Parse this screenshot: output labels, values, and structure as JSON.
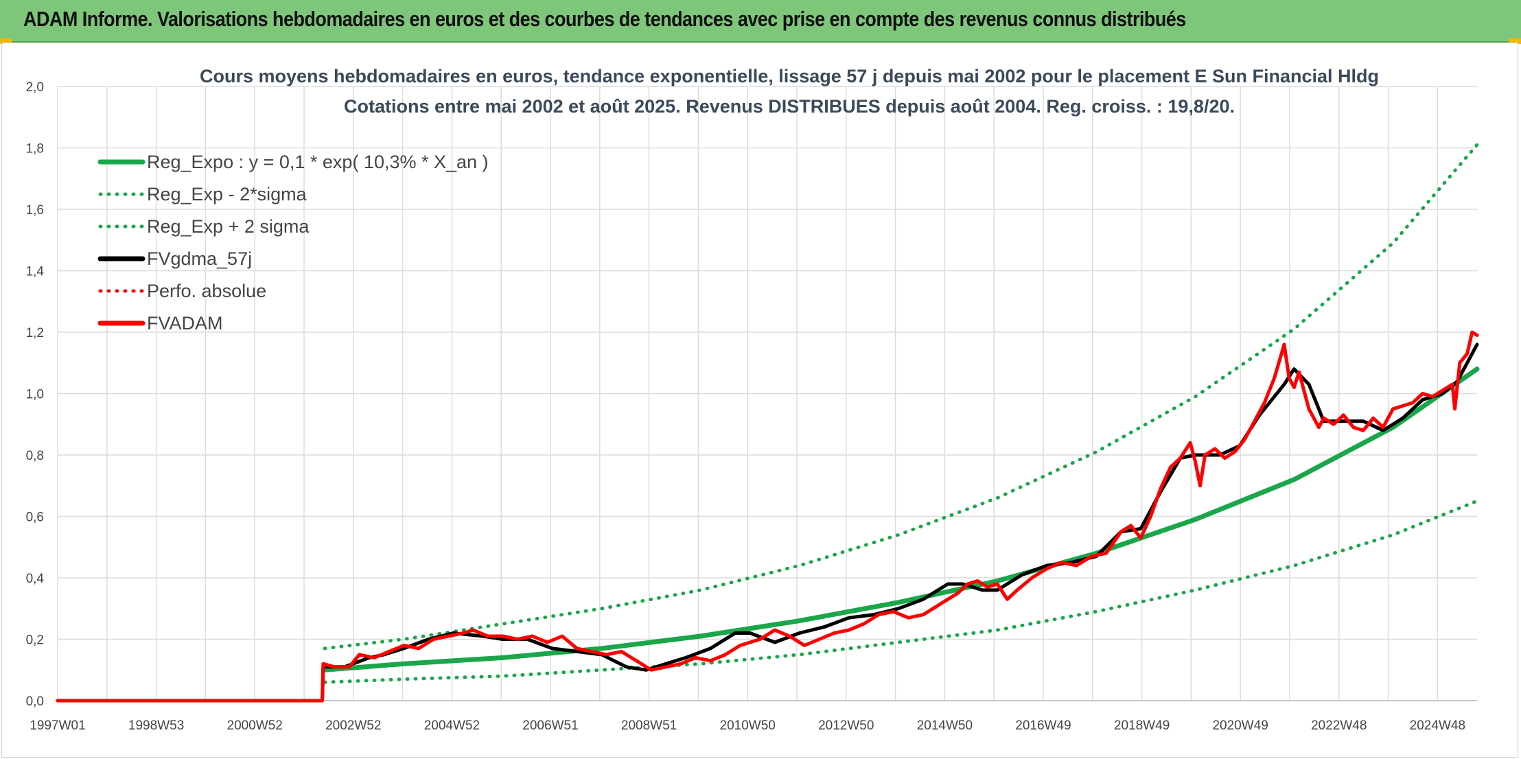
{
  "header": {
    "title": "ADAM Informe. Valorisations hebdomadaires en euros et des courbes de tendances avec prise en compte des revenus connus distribués"
  },
  "colors": {
    "green": "#1aa64a",
    "black": "#000000",
    "red": "#ff0000",
    "header_bg": "#7dc67a"
  },
  "chart_data": {
    "type": "line",
    "title": "Cours moyens hebdomadaires en euros, tendance exponentielle, lissage 57 j depuis mai 2002 pour le placement E Sun Financial Hldg",
    "subtitle": "Cotations entre mai 2002 et août 2025. Revenus DISTRIBUES depuis août 2004. Reg. croiss. : 19,8/20.",
    "xlabel": "",
    "ylabel": "",
    "ylim": [
      0,
      2.0
    ],
    "yticks": [
      "0,0",
      "0,2",
      "0,4",
      "0,6",
      "0,8",
      "1,0",
      "1,2",
      "1,4",
      "1,6",
      "1,8",
      "2,0"
    ],
    "xlim": [
      1997.0,
      2025.7
    ],
    "xtick_labels": [
      "1997W01",
      "1998W53",
      "2000W52",
      "2002W52",
      "2004W52",
      "2006W51",
      "2008W51",
      "2010W50",
      "2012W50",
      "2014W50",
      "2016W49",
      "2018W49",
      "2020W49",
      "2022W48",
      "2024W48"
    ],
    "grid": true,
    "legend_position": "top-left",
    "legend": [
      {
        "name": "Reg_Expo : y = 0,1 * exp( 10,3% *  X_an )",
        "color": "#1aa64a",
        "style": "solid"
      },
      {
        "name": "Reg_Exp - 2*sigma",
        "color": "#1aa64a",
        "style": "dotted"
      },
      {
        "name": "Reg_Exp + 2 sigma",
        "color": "#1aa64a",
        "style": "dotted"
      },
      {
        "name": "FVgdma_57j",
        "color": "#000000",
        "style": "solid"
      },
      {
        "name": "Perfo. absolue",
        "color": "#ff0000",
        "style": "dotted"
      },
      {
        "name": "FVADAM",
        "color": "#ff0000",
        "style": "solid"
      }
    ],
    "series": [
      {
        "name": "Reg_Expo : y = 0,1 * exp( 10,3% *  X_an )",
        "x": [
          2002.4,
          2004,
          2006,
          2008,
          2010,
          2012,
          2014,
          2016,
          2018,
          2020,
          2022,
          2024,
          2025.7
        ],
        "values": [
          0.1,
          0.12,
          0.14,
          0.17,
          0.21,
          0.26,
          0.32,
          0.39,
          0.48,
          0.59,
          0.72,
          0.89,
          1.08
        ]
      },
      {
        "name": "Reg_Exp - 2*sigma",
        "x": [
          2002.4,
          2004,
          2006,
          2008,
          2010,
          2012,
          2014,
          2016,
          2018,
          2020,
          2022,
          2024,
          2025.7
        ],
        "values": [
          0.06,
          0.07,
          0.08,
          0.1,
          0.12,
          0.15,
          0.19,
          0.23,
          0.29,
          0.36,
          0.44,
          0.54,
          0.65
        ]
      },
      {
        "name": "Reg_Exp + 2 sigma",
        "x": [
          2002.4,
          2004,
          2006,
          2008,
          2010,
          2012,
          2014,
          2016,
          2018,
          2020,
          2022,
          2024,
          2025.7
        ],
        "values": [
          0.17,
          0.2,
          0.25,
          0.3,
          0.36,
          0.44,
          0.54,
          0.66,
          0.81,
          0.99,
          1.21,
          1.49,
          1.81
        ]
      },
      {
        "name": "FVgdma_57j",
        "x": [
          1997.0,
          2002.35,
          2002.37,
          2002.8,
          2003.3,
          2003.6,
          2004.0,
          2004.5,
          2005.0,
          2005.6,
          2006.0,
          2006.5,
          2007.0,
          2007.5,
          2008.0,
          2008.5,
          2008.9,
          2009.3,
          2009.7,
          2010.2,
          2010.7,
          2011.0,
          2011.5,
          2012.0,
          2012.5,
          2013.0,
          2013.5,
          2014.0,
          2014.5,
          2015.0,
          2015.3,
          2015.7,
          2016.0,
          2016.5,
          2017.0,
          2017.5,
          2018.0,
          2018.5,
          2018.9,
          2019.3,
          2019.7,
          2020.0,
          2020.5,
          2020.9,
          2021.3,
          2021.8,
          2022.0,
          2022.3,
          2022.6,
          2023.0,
          2023.4,
          2023.8,
          2024.2,
          2024.6,
          2025.0,
          2025.3,
          2025.7
        ],
        "values": [
          0.0,
          0.0,
          0.11,
          0.11,
          0.14,
          0.15,
          0.17,
          0.2,
          0.22,
          0.21,
          0.2,
          0.2,
          0.17,
          0.16,
          0.15,
          0.11,
          0.1,
          0.12,
          0.14,
          0.17,
          0.22,
          0.22,
          0.19,
          0.22,
          0.24,
          0.27,
          0.28,
          0.3,
          0.33,
          0.38,
          0.38,
          0.36,
          0.36,
          0.41,
          0.44,
          0.45,
          0.47,
          0.55,
          0.56,
          0.68,
          0.79,
          0.8,
          0.8,
          0.83,
          0.93,
          1.03,
          1.08,
          1.03,
          0.91,
          0.91,
          0.91,
          0.88,
          0.92,
          0.98,
          1.0,
          1.04,
          1.16
        ]
      },
      {
        "name": "FVADAM",
        "x": [
          1997.0,
          2002.35,
          2002.37,
          2002.6,
          2002.9,
          2003.1,
          2003.4,
          2003.7,
          2004.0,
          2004.3,
          2004.6,
          2004.9,
          2005.2,
          2005.4,
          2005.7,
          2006.0,
          2006.3,
          2006.6,
          2006.9,
          2007.2,
          2007.5,
          2007.8,
          2008.1,
          2008.4,
          2008.7,
          2009.0,
          2009.3,
          2009.6,
          2009.9,
          2010.2,
          2010.5,
          2010.8,
          2011.0,
          2011.2,
          2011.5,
          2011.8,
          2012.1,
          2012.4,
          2012.7,
          2013.0,
          2013.3,
          2013.6,
          2013.9,
          2014.2,
          2014.5,
          2014.8,
          2015.0,
          2015.2,
          2015.4,
          2015.6,
          2015.8,
          2016.0,
          2016.2,
          2016.4,
          2016.7,
          2017.0,
          2017.3,
          2017.6,
          2017.9,
          2018.2,
          2018.5,
          2018.7,
          2018.9,
          2019.1,
          2019.3,
          2019.5,
          2019.7,
          2019.9,
          2020.0,
          2020.1,
          2020.2,
          2020.4,
          2020.6,
          2020.8,
          2021.0,
          2021.2,
          2021.4,
          2021.6,
          2021.8,
          2021.9,
          2022.0,
          2022.1,
          2022.3,
          2022.5,
          2022.6,
          2022.8,
          2023.0,
          2023.2,
          2023.4,
          2023.6,
          2023.8,
          2024.0,
          2024.2,
          2024.4,
          2024.6,
          2024.8,
          2025.0,
          2025.2,
          2025.25,
          2025.35,
          2025.5,
          2025.6,
          2025.7
        ],
        "values": [
          0.0,
          0.0,
          0.12,
          0.11,
          0.11,
          0.15,
          0.14,
          0.16,
          0.18,
          0.17,
          0.2,
          0.21,
          0.22,
          0.23,
          0.21,
          0.21,
          0.2,
          0.21,
          0.19,
          0.21,
          0.17,
          0.16,
          0.15,
          0.16,
          0.13,
          0.1,
          0.11,
          0.12,
          0.14,
          0.13,
          0.15,
          0.18,
          0.19,
          0.2,
          0.23,
          0.21,
          0.18,
          0.2,
          0.22,
          0.23,
          0.25,
          0.28,
          0.29,
          0.27,
          0.28,
          0.31,
          0.33,
          0.35,
          0.38,
          0.39,
          0.37,
          0.38,
          0.33,
          0.36,
          0.4,
          0.43,
          0.45,
          0.44,
          0.47,
          0.48,
          0.55,
          0.57,
          0.53,
          0.6,
          0.69,
          0.76,
          0.79,
          0.84,
          0.78,
          0.7,
          0.8,
          0.82,
          0.79,
          0.81,
          0.85,
          0.91,
          0.97,
          1.05,
          1.16,
          1.05,
          1.02,
          1.07,
          0.95,
          0.89,
          0.92,
          0.9,
          0.93,
          0.89,
          0.88,
          0.92,
          0.89,
          0.95,
          0.96,
          0.97,
          1.0,
          0.99,
          1.01,
          1.03,
          0.95,
          1.1,
          1.13,
          1.2,
          1.19
        ]
      }
    ]
  }
}
